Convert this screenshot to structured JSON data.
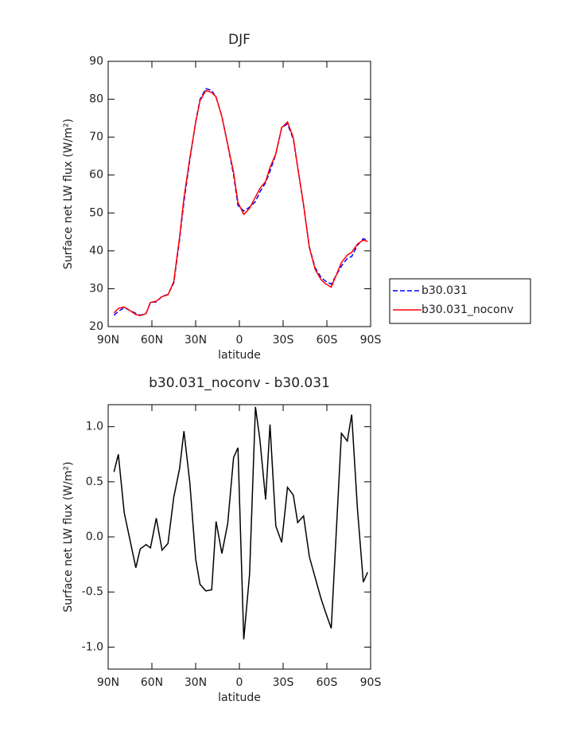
{
  "chart_data": [
    {
      "type": "line",
      "title": "DJF",
      "xlabel": "latitude",
      "ylabel": "Surface net LW flux (W/m²)",
      "x": [
        86,
        83,
        79,
        71,
        68,
        64,
        61,
        57,
        53,
        49,
        45,
        41,
        38,
        34,
        30,
        27,
        23,
        19,
        16,
        12,
        8,
        4,
        1,
        -3,
        -7,
        -11,
        -14,
        -18,
        -21,
        -25,
        -29,
        -33,
        -37,
        -40,
        -44,
        -48,
        -52,
        -56,
        -59,
        -63,
        -70,
        -74,
        -77,
        -81,
        -85,
        -88
      ],
      "series": [
        {
          "name": "b30.031",
          "color": "#0000ff",
          "dash": true,
          "values": [
            23,
            24,
            25,
            23.5,
            23,
            23.5,
            26.5,
            26.5,
            28,
            28.5,
            31.5,
            43,
            53,
            64,
            74,
            80,
            82.8,
            82.3,
            80.5,
            75.5,
            68,
            60,
            52,
            50.5,
            51.5,
            53,
            55.5,
            58,
            61,
            65.5,
            72.5,
            73.5,
            69.5,
            62,
            52,
            41,
            35.5,
            33,
            32,
            31.2,
            36,
            38,
            38.5,
            41.5,
            43.2,
            42.8
          ]
        },
        {
          "name": "b30.031_noconv",
          "color": "#ff0000",
          "dash": false,
          "values": [
            23.6,
            24.8,
            25.2,
            23.2,
            22.9,
            23.4,
            26.4,
            26.7,
            27.9,
            28.4,
            31.9,
            43.6,
            54,
            64.5,
            73.8,
            79.6,
            82.3,
            81.8,
            80.6,
            75.4,
            68.1,
            60.7,
            52.8,
            49.6,
            51.2,
            54.2,
            56.4,
            58.3,
            62,
            65.6,
            72.5,
            74,
            69.9,
            62.1,
            52.2,
            40.8,
            35.1,
            32.4,
            31.3,
            30.4,
            36.9,
            38.9,
            39.6,
            41.8,
            42.8,
            42.5
          ]
        }
      ],
      "xlim": [
        90,
        -90
      ],
      "xticks": [
        {
          "value": 90,
          "label": "90N"
        },
        {
          "value": 60,
          "label": "60N"
        },
        {
          "value": 30,
          "label": "30N"
        },
        0,
        {
          "value": -30,
          "label": "30S"
        },
        {
          "value": -60,
          "label": "60S"
        },
        {
          "value": -90,
          "label": "90S"
        }
      ],
      "ylim": [
        20,
        90
      ],
      "yticks": [
        20,
        30,
        40,
        50,
        60,
        70,
        80,
        90
      ],
      "legend": "outside right"
    },
    {
      "type": "line",
      "title": "b30.031_noconv - b30.031",
      "xlabel": "latitude",
      "ylabel": "Surface net LW flux (W/m²)",
      "x": [
        86,
        83,
        79,
        71,
        68,
        64,
        61,
        57,
        53,
        49,
        45,
        41,
        38,
        34,
        30,
        27,
        23,
        19,
        16,
        12,
        8,
        4,
        1,
        -3,
        -7,
        -11,
        -14,
        -18,
        -21,
        -25,
        -29,
        -33,
        -37,
        -40,
        -44,
        -48,
        -52,
        -56,
        -59,
        -63,
        -70,
        -74,
        -77,
        -81,
        -85,
        -88
      ],
      "values": [
        0.59,
        0.75,
        0.22,
        -0.28,
        -0.11,
        -0.07,
        -0.1,
        0.17,
        -0.12,
        -0.06,
        0.36,
        0.62,
        0.96,
        0.49,
        -0.2,
        -0.43,
        -0.49,
        -0.48,
        0.14,
        -0.15,
        0.12,
        0.72,
        0.81,
        -0.93,
        -0.34,
        1.18,
        0.89,
        0.34,
        1.02,
        0.1,
        -0.05,
        0.45,
        0.38,
        0.13,
        0.19,
        -0.18,
        -0.37,
        -0.56,
        -0.68,
        -0.83,
        0.94,
        0.87,
        1.11,
        0.25,
        -0.41,
        -0.32
      ],
      "color": "#000000",
      "xlim": [
        90,
        -90
      ],
      "xticks": [
        {
          "value": 90,
          "label": "90N"
        },
        {
          "value": 60,
          "label": "60N"
        },
        {
          "value": 30,
          "label": "30N"
        },
        0,
        {
          "value": -30,
          "label": "30S"
        },
        {
          "value": -60,
          "label": "60S"
        },
        {
          "value": -90,
          "label": "90S"
        }
      ],
      "ylim": [
        -1.2,
        1.2
      ],
      "yticks": [
        {
          "value": -1,
          "label": "-1.0"
        },
        {
          "value": -0.5,
          "label": "-0.5"
        },
        {
          "value": 0,
          "label": "0.0"
        },
        {
          "value": 0.5,
          "label": "0.5"
        },
        {
          "value": 1,
          "label": "1.0"
        }
      ]
    }
  ]
}
